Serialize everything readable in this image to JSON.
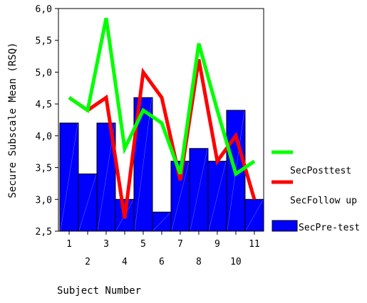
{
  "chart_data": {
    "type": "bar",
    "x": [
      1,
      2,
      3,
      4,
      5,
      6,
      7,
      8,
      9,
      10,
      11
    ],
    "xlabel": "Subject Number",
    "ylabel": "Secure Subscale Mean (RSQ)",
    "ylim": [
      2.5,
      6.0
    ],
    "yticks": [
      "2,5",
      "3,0",
      "3,5",
      "4,0",
      "4,5",
      "5,0",
      "5,5",
      "6,0"
    ],
    "grid": false,
    "legend_position": "right",
    "series": [
      {
        "name": "SecPre-test",
        "kind": "bar",
        "color": "#0000ff",
        "values": [
          4.2,
          3.4,
          4.2,
          3.0,
          4.6,
          2.8,
          3.6,
          3.8,
          3.6,
          4.4,
          3.0
        ]
      },
      {
        "name": "SecFollow up",
        "kind": "line",
        "color": "#ff0000",
        "values": [
          4.6,
          4.4,
          4.6,
          2.7,
          5.0,
          4.6,
          3.3,
          5.2,
          3.6,
          4.0,
          3.0
        ]
      },
      {
        "name": "SecPosttest",
        "kind": "line",
        "color": "#00ff00",
        "values": [
          4.6,
          4.4,
          5.85,
          3.8,
          4.4,
          4.2,
          3.4,
          5.45,
          4.4,
          3.4,
          3.6
        ]
      }
    ]
  }
}
